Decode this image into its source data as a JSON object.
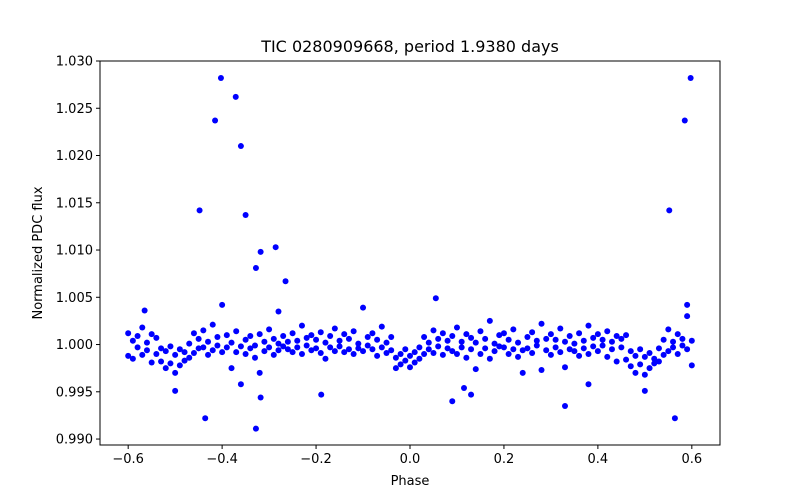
{
  "chart_data": {
    "type": "scatter",
    "title": "TIC 0280909668, period 1.9380 days",
    "xlabel": "Phase",
    "ylabel": "Normalized PDC flux",
    "xlim": [
      -0.66,
      0.66
    ],
    "ylim": [
      0.98937,
      1.03
    ],
    "xticks": [
      -0.6,
      -0.4,
      -0.2,
      0.0,
      0.2,
      0.4,
      0.6
    ],
    "xtick_labels": [
      "−0.6",
      "−0.4",
      "−0.2",
      "0.0",
      "0.2",
      "0.4",
      "0.6"
    ],
    "yticks": [
      0.99,
      0.995,
      1.0,
      1.005,
      1.01,
      1.015,
      1.02,
      1.025,
      1.03
    ],
    "ytick_labels": [
      "0.990",
      "0.995",
      "1.000",
      "1.005",
      "1.010",
      "1.015",
      "1.020",
      "1.025",
      "1.030"
    ],
    "grid": false,
    "marker_color": "#0000ff",
    "points": [
      [
        -0.6,
        1.0012
      ],
      [
        -0.6,
        0.9988
      ],
      [
        -0.59,
        1.0004
      ],
      [
        -0.59,
        0.9985
      ],
      [
        -0.58,
        1.0009
      ],
      [
        -0.58,
        0.9997
      ],
      [
        -0.57,
        1.0018
      ],
      [
        -0.57,
        0.9989
      ],
      [
        -0.56,
        1.0002
      ],
      [
        -0.56,
        0.9994
      ],
      [
        -0.55,
        1.0011
      ],
      [
        -0.55,
        0.9981
      ],
      [
        -0.54,
        1.0007
      ],
      [
        -0.54,
        0.999
      ],
      [
        -0.53,
        0.9996
      ],
      [
        -0.53,
        0.9982
      ],
      [
        -0.52,
        0.9993
      ],
      [
        -0.52,
        0.9975
      ],
      [
        -0.51,
        0.9998
      ],
      [
        -0.51,
        0.998
      ],
      [
        -0.5,
        0.9989
      ],
      [
        -0.5,
        0.997
      ],
      [
        -0.49,
        0.9995
      ],
      [
        -0.49,
        0.9978
      ],
      [
        -0.48,
        0.9992
      ],
      [
        -0.48,
        0.9983
      ],
      [
        -0.47,
        1.0001
      ],
      [
        -0.47,
        0.9986
      ],
      [
        -0.46,
        1.0012
      ],
      [
        -0.46,
        0.9991
      ],
      [
        -0.45,
        1.0006
      ],
      [
        -0.45,
        0.9996
      ],
      [
        -0.44,
        1.0015
      ],
      [
        -0.44,
        0.9997
      ],
      [
        -0.43,
        1.0003
      ],
      [
        -0.43,
        0.9989
      ],
      [
        -0.42,
        1.0021
      ],
      [
        -0.42,
        0.9994
      ],
      [
        -0.41,
        1.0008
      ],
      [
        -0.41,
        0.9999
      ],
      [
        -0.4,
        1.0042
      ],
      [
        -0.4,
        0.9992
      ],
      [
        -0.39,
        1.001
      ],
      [
        -0.39,
        0.9997
      ],
      [
        -0.38,
        1.0002
      ],
      [
        -0.38,
        0.9975
      ],
      [
        -0.37,
        1.0014
      ],
      [
        -0.37,
        0.9992
      ],
      [
        -0.36,
        0.9998
      ],
      [
        -0.36,
        0.9958
      ],
      [
        -0.35,
        1.0005
      ],
      [
        -0.35,
        0.999
      ],
      [
        -0.34,
        1.0009
      ],
      [
        -0.34,
        0.9996
      ],
      [
        -0.33,
        0.9999
      ],
      [
        -0.33,
        0.9986
      ],
      [
        -0.32,
        1.0011
      ],
      [
        -0.32,
        0.997
      ],
      [
        -0.31,
        1.0003
      ],
      [
        -0.31,
        0.9993
      ],
      [
        -0.3,
        1.0016
      ],
      [
        -0.3,
        0.9997
      ],
      [
        -0.29,
        1.0006
      ],
      [
        -0.29,
        0.9989
      ],
      [
        -0.28,
        1.0001
      ],
      [
        -0.28,
        0.9994
      ],
      [
        -0.27,
        1.0009
      ],
      [
        -0.27,
        0.9998
      ],
      [
        -0.26,
        0.9995
      ],
      [
        -0.26,
        1.0003
      ],
      [
        -0.25,
        1.0012
      ],
      [
        -0.25,
        0.9992
      ],
      [
        -0.24,
        1.0004
      ],
      [
        -0.24,
        0.9997
      ],
      [
        -0.23,
        1.002
      ],
      [
        -0.23,
        0.999
      ],
      [
        -0.22,
        1.0007
      ],
      [
        -0.22,
        0.9999
      ],
      [
        -0.21,
        0.9994
      ],
      [
        -0.21,
        1.001
      ],
      [
        -0.2,
        1.0005
      ],
      [
        -0.2,
        0.9996
      ],
      [
        -0.19,
        1.0013
      ],
      [
        -0.19,
        0.9991
      ],
      [
        -0.18,
        1.0002
      ],
      [
        -0.18,
        0.9985
      ],
      [
        -0.17,
        1.0009
      ],
      [
        -0.17,
        0.9997
      ],
      [
        -0.16,
        1.0017
      ],
      [
        -0.16,
        0.9993
      ],
      [
        -0.15,
        1.0004
      ],
      [
        -0.15,
        0.9998
      ],
      [
        -0.14,
        0.9992
      ],
      [
        -0.14,
        1.0011
      ],
      [
        -0.13,
        1.0006
      ],
      [
        -0.13,
        0.9995
      ],
      [
        -0.12,
        1.0014
      ],
      [
        -0.12,
        0.999
      ],
      [
        -0.11,
        1.0001
      ],
      [
        -0.11,
        0.9996
      ],
      [
        -0.1,
        1.0039
      ],
      [
        -0.1,
        0.9993
      ],
      [
        -0.09,
        1.0008
      ],
      [
        -0.09,
        0.9999
      ],
      [
        -0.08,
        0.9995
      ],
      [
        -0.08,
        1.0012
      ],
      [
        -0.07,
        1.0005
      ],
      [
        -0.07,
        0.9988
      ],
      [
        -0.06,
        1.0019
      ],
      [
        -0.06,
        0.9997
      ],
      [
        -0.05,
        1.0002
      ],
      [
        -0.05,
        0.9991
      ],
      [
        -0.04,
        0.9994
      ],
      [
        -0.04,
        1.0008
      ],
      [
        -0.03,
        0.9986
      ],
      [
        -0.03,
        0.9975
      ],
      [
        -0.02,
        0.999
      ],
      [
        -0.02,
        0.9979
      ],
      [
        -0.01,
        0.9983
      ],
      [
        -0.01,
        0.9995
      ],
      [
        0.0,
        0.9988
      ],
      [
        0.0,
        0.9976
      ],
      [
        0.01,
        0.9992
      ],
      [
        0.01,
        0.9981
      ],
      [
        0.02,
        0.9997
      ],
      [
        0.02,
        0.9985
      ],
      [
        0.03,
        1.0008
      ],
      [
        0.03,
        0.999
      ],
      [
        0.04,
        1.0002
      ],
      [
        0.04,
        0.9995
      ],
      [
        0.05,
        1.0015
      ],
      [
        0.05,
        0.9991
      ],
      [
        0.06,
        1.0006
      ],
      [
        0.06,
        0.9998
      ],
      [
        0.07,
        1.0012
      ],
      [
        0.07,
        0.9989
      ],
      [
        0.08,
        0.9996
      ],
      [
        0.08,
        1.0004
      ],
      [
        0.09,
        1.0009
      ],
      [
        0.09,
        0.9993
      ],
      [
        0.1,
        1.0018
      ],
      [
        0.1,
        0.999
      ],
      [
        0.11,
        1.0003
      ],
      [
        0.11,
        0.9997
      ],
      [
        0.12,
        1.0011
      ],
      [
        0.12,
        0.9986
      ],
      [
        0.13,
        0.9995
      ],
      [
        0.13,
        1.0007
      ],
      [
        0.14,
        1.0002
      ],
      [
        0.14,
        0.9974
      ],
      [
        0.15,
        1.0014
      ],
      [
        0.15,
        0.999
      ],
      [
        0.16,
        1.0006
      ],
      [
        0.16,
        0.9996
      ],
      [
        0.17,
        1.0025
      ],
      [
        0.17,
        0.9985
      ],
      [
        0.18,
        1.0001
      ],
      [
        0.18,
        0.9993
      ],
      [
        0.19,
        1.001
      ],
      [
        0.19,
        0.9998
      ],
      [
        0.2,
        0.9997
      ],
      [
        0.2,
        1.0012
      ],
      [
        0.21,
        1.0005
      ],
      [
        0.21,
        0.999
      ],
      [
        0.22,
        1.0016
      ],
      [
        0.22,
        0.9995
      ],
      [
        0.23,
        1.0002
      ],
      [
        0.23,
        0.9987
      ],
      [
        0.24,
        0.9994
      ],
      [
        0.24,
        0.997
      ],
      [
        0.25,
        1.0008
      ],
      [
        0.25,
        0.9996
      ],
      [
        0.26,
        1.0013
      ],
      [
        0.26,
        0.9991
      ],
      [
        0.27,
        0.9999
      ],
      [
        0.27,
        1.0004
      ],
      [
        0.28,
        1.0022
      ],
      [
        0.28,
        0.9973
      ],
      [
        0.29,
        1.0006
      ],
      [
        0.29,
        0.9994
      ],
      [
        0.3,
        1.0011
      ],
      [
        0.3,
        0.9989
      ],
      [
        0.31,
        0.9997
      ],
      [
        0.31,
        1.0005
      ],
      [
        0.32,
        1.0017
      ],
      [
        0.32,
        0.9992
      ],
      [
        0.33,
        1.0003
      ],
      [
        0.33,
        0.9976
      ],
      [
        0.34,
        1.0009
      ],
      [
        0.34,
        0.9995
      ],
      [
        0.35,
        0.9993
      ],
      [
        0.35,
        1.0001
      ],
      [
        0.36,
        1.0012
      ],
      [
        0.36,
        0.9988
      ],
      [
        0.37,
        1.0004
      ],
      [
        0.37,
        0.9996
      ],
      [
        0.38,
        1.002
      ],
      [
        0.38,
        0.999
      ],
      [
        0.39,
        1.0007
      ],
      [
        0.39,
        0.9998
      ],
      [
        0.4,
        1.0011
      ],
      [
        0.4,
        0.9993
      ],
      [
        0.41,
        0.9999
      ],
      [
        0.41,
        1.0005
      ],
      [
        0.42,
        1.0014
      ],
      [
        0.42,
        0.9987
      ],
      [
        0.43,
        1.0003
      ],
      [
        0.43,
        0.9995
      ],
      [
        0.44,
        1.0009
      ],
      [
        0.44,
        0.9982
      ],
      [
        0.45,
        0.9997
      ],
      [
        0.45,
        1.0006
      ],
      [
        0.46,
        1.001
      ],
      [
        0.46,
        0.9984
      ],
      [
        0.47,
        0.9993
      ],
      [
        0.47,
        0.9977
      ],
      [
        0.48,
        0.9988
      ],
      [
        0.48,
        0.997
      ],
      [
        0.49,
        0.9995
      ],
      [
        0.49,
        0.9979
      ],
      [
        0.5,
        0.9987
      ],
      [
        0.5,
        0.9968
      ],
      [
        0.51,
        0.9991
      ],
      [
        0.51,
        0.9975
      ],
      [
        0.52,
        0.9985
      ],
      [
        0.52,
        0.998
      ],
      [
        0.53,
        0.9996
      ],
      [
        0.53,
        0.9982
      ],
      [
        0.54,
        1.0005
      ],
      [
        0.54,
        0.9989
      ],
      [
        0.55,
        1.0016
      ],
      [
        0.55,
        0.9993
      ],
      [
        0.56,
        1.0003
      ],
      [
        0.56,
        0.9997
      ],
      [
        0.57,
        1.0011
      ],
      [
        0.57,
        0.999
      ],
      [
        0.58,
        1.0006
      ],
      [
        0.58,
        0.9999
      ],
      [
        0.59,
        1.0042
      ],
      [
        0.59,
        0.9995
      ],
      [
        0.6,
        1.0004
      ],
      [
        0.6,
        0.9978
      ],
      [
        -0.4025,
        1.0282
      ],
      [
        -0.371,
        1.0262
      ],
      [
        -0.415,
        1.0237
      ],
      [
        -0.36,
        1.021
      ],
      [
        -0.448,
        1.0142
      ],
      [
        -0.35,
        1.0137
      ],
      [
        -0.286,
        1.0103
      ],
      [
        -0.318,
        1.0098
      ],
      [
        -0.328,
        1.0081
      ],
      [
        -0.265,
        1.0067
      ],
      [
        -0.436,
        0.9922
      ],
      [
        -0.328,
        0.9911
      ],
      [
        -0.318,
        0.9944
      ],
      [
        -0.189,
        0.9947
      ],
      [
        -0.5,
        0.9951
      ],
      [
        -0.565,
        1.0036
      ],
      [
        -0.28,
        1.0035
      ],
      [
        0.5975,
        1.0282
      ],
      [
        0.585,
        1.0237
      ],
      [
        0.552,
        1.0142
      ],
      [
        0.564,
        0.9922
      ],
      [
        0.5,
        0.9951
      ],
      [
        0.09,
        0.994
      ],
      [
        0.13,
        0.9947
      ],
      [
        0.115,
        0.9954
      ],
      [
        0.33,
        0.9935
      ],
      [
        0.055,
        1.0049
      ],
      [
        0.38,
        0.9958
      ],
      [
        0.59,
        1.003
      ]
    ]
  }
}
